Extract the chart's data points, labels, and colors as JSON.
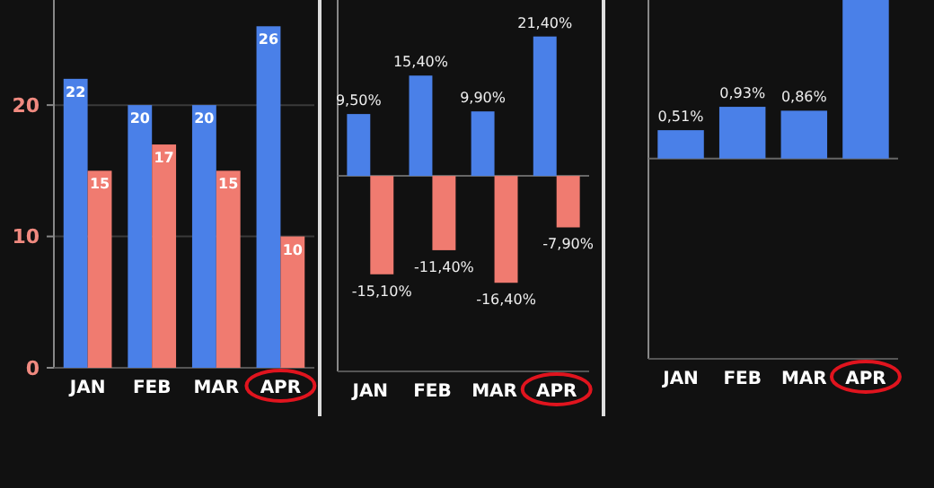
{
  "chart_data": [
    {
      "type": "bar",
      "categories": [
        "JAN",
        "FEB",
        "MAR",
        "APR"
      ],
      "series": [
        {
          "color": "#4a80e8",
          "values": [
            22,
            20,
            20,
            26
          ]
        },
        {
          "color": "#f07b70",
          "values": [
            15,
            17,
            15,
            10
          ]
        }
      ],
      "ylim": [
        0,
        28
      ],
      "yticks": [
        0,
        10,
        20
      ],
      "grid": "y",
      "data_labels": true
    },
    {
      "type": "bar",
      "categories": [
        "JAN",
        "FEB",
        "MAR",
        "APR"
      ],
      "series": [
        {
          "color": "#4a80e8",
          "values": [
            9.5,
            15.4,
            9.9,
            21.4
          ],
          "value_labels": [
            "9,50%",
            "15,40%",
            "9,90%",
            "21,40%"
          ]
        },
        {
          "color": "#f07b70",
          "values": [
            -15.1,
            -11.4,
            -16.4,
            -7.9
          ],
          "value_labels": [
            "-15,10%",
            "-11,40%",
            "-16,40%",
            "-7,90%"
          ]
        }
      ],
      "ylim": [
        -30,
        27
      ],
      "tick_labels": "x"
    },
    {
      "type": "bar",
      "categories": [
        "JAN",
        "FEB",
        "MAR",
        "APR"
      ],
      "series": [
        {
          "color": "#4a80e8",
          "values": [
            0.51,
            0.93,
            0.86,
            2.85
          ],
          "value_labels": [
            "0,51%",
            "0,93%",
            "0,86%",
            null
          ]
        }
      ],
      "ylim": [
        -3.6,
        2.85
      ],
      "tick_labels": "x"
    }
  ]
}
